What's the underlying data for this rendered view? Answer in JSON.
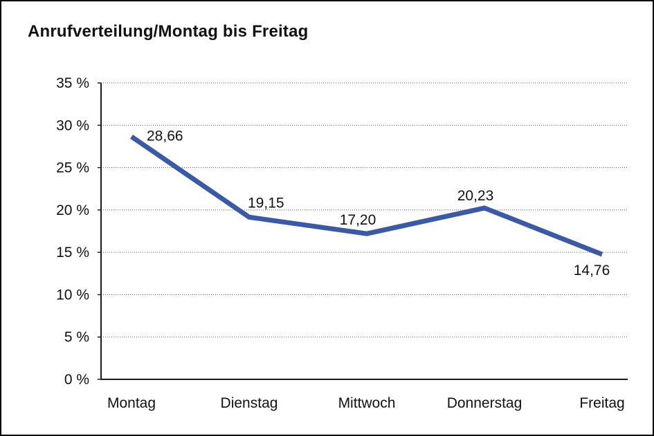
{
  "chart_data": {
    "type": "line",
    "title": "Anrufverteilung/Montag bis Freitag",
    "categories": [
      "Montag",
      "Dienstag",
      "Mittwoch",
      "Donnerstag",
      "Freitag"
    ],
    "values": [
      28.66,
      19.15,
      17.2,
      20.23,
      14.76
    ],
    "value_labels": [
      "28,66",
      "19,15",
      "17,20",
      "20,23",
      "14,76"
    ],
    "xlabel": "",
    "ylabel": "",
    "ylim": [
      0,
      35
    ],
    "y_tick_step": 5,
    "y_tick_labels": [
      "0 %",
      "5 %",
      "10 %",
      "15 %",
      "20 %",
      "25 %",
      "30 %",
      "35 %"
    ],
    "grid": "horizontal-dotted",
    "legend": "none",
    "colors": {
      "line": "#3A5AA8",
      "axis": "#1a1a1a",
      "grid": "#555555",
      "text": "#111111",
      "background": "#ffffff",
      "frame_border": "#000000"
    }
  }
}
